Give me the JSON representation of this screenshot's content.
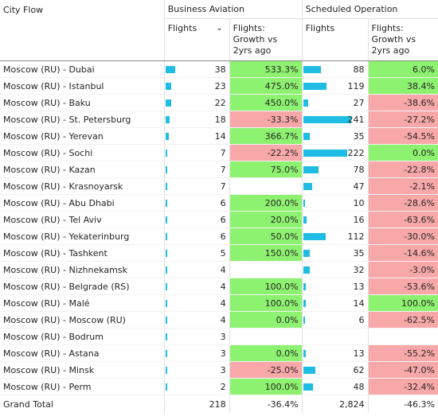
{
  "header": {
    "city_flow": "City Flow",
    "group1": "Business Aviation",
    "group2": "Scheduled Operation",
    "flights": "Flights",
    "growth": "Flights: Growth vs 2yrs ago",
    "sort_icon": "chevron-down-icon"
  },
  "rows": [
    {
      "city": "Moscow (RU) - Dubai",
      "ba_flights": "38",
      "ba_growth": "533.3%",
      "so_flights": "88",
      "so_growth": "6.0%"
    },
    {
      "city": "Moscow (RU) - Istanbul",
      "ba_flights": "23",
      "ba_growth": "475.0%",
      "so_flights": "119",
      "so_growth": "38.4%"
    },
    {
      "city": "Moscow (RU) - Baku",
      "ba_flights": "22",
      "ba_growth": "450.0%",
      "so_flights": "27",
      "so_growth": "-38.6%"
    },
    {
      "city": "Moscow (RU) - St. Petersburg",
      "ba_flights": "18",
      "ba_growth": "-33.3%",
      "so_flights": "241",
      "so_growth": "-27.2%"
    },
    {
      "city": "Moscow (RU) - Yerevan",
      "ba_flights": "14",
      "ba_growth": "366.7%",
      "so_flights": "35",
      "so_growth": "-54.5%"
    },
    {
      "city": "Moscow (RU) - Sochi",
      "ba_flights": "7",
      "ba_growth": "-22.2%",
      "so_flights": "222",
      "so_growth": "0.0%"
    },
    {
      "city": "Moscow (RU) - Kazan",
      "ba_flights": "7",
      "ba_growth": "75.0%",
      "so_flights": "78",
      "so_growth": "-22.8%"
    },
    {
      "city": "Moscow (RU) - Krasnoyarsk",
      "ba_flights": "7",
      "ba_growth": "",
      "so_flights": "47",
      "so_growth": "-2.1%"
    },
    {
      "city": "Moscow (RU) - Abu Dhabi",
      "ba_flights": "6",
      "ba_growth": "200.0%",
      "so_flights": "10",
      "so_growth": "-28.6%"
    },
    {
      "city": "Moscow (RU) - Tel Aviv",
      "ba_flights": "6",
      "ba_growth": "20.0%",
      "so_flights": "16",
      "so_growth": "-63.6%"
    },
    {
      "city": "Moscow (RU) - Yekaterinburg",
      "ba_flights": "6",
      "ba_growth": "50.0%",
      "so_flights": "112",
      "so_growth": "-30.0%"
    },
    {
      "city": "Moscow (RU) - Tashkent",
      "ba_flights": "5",
      "ba_growth": "150.0%",
      "so_flights": "35",
      "so_growth": "-14.6%"
    },
    {
      "city": "Moscow (RU) - Nizhnekamsk",
      "ba_flights": "4",
      "ba_growth": "",
      "so_flights": "32",
      "so_growth": "-3.0%"
    },
    {
      "city": "Moscow (RU) - Belgrade (RS)",
      "ba_flights": "4",
      "ba_growth": "100.0%",
      "so_flights": "13",
      "so_growth": "-53.6%"
    },
    {
      "city": "Moscow (RU) - Malé",
      "ba_flights": "4",
      "ba_growth": "100.0%",
      "so_flights": "14",
      "so_growth": "100.0%"
    },
    {
      "city": "Moscow (RU) - Moscow (RU)",
      "ba_flights": "4",
      "ba_growth": "0.0%",
      "so_flights": "6",
      "so_growth": "-62.5%"
    },
    {
      "city": "Moscow (RU) - Bodrum",
      "ba_flights": "3",
      "ba_growth": "",
      "so_flights": "",
      "so_growth": ""
    },
    {
      "city": "Moscow (RU) - Astana",
      "ba_flights": "3",
      "ba_growth": "0.0%",
      "so_flights": "13",
      "so_growth": "-55.2%"
    },
    {
      "city": "Moscow (RU) - Minsk",
      "ba_flights": "3",
      "ba_growth": "-25.0%",
      "so_flights": "62",
      "so_growth": "-47.0%"
    },
    {
      "city": "Moscow (RU) - Perm",
      "ba_flights": "2",
      "ba_growth": "100.0%",
      "so_flights": "48",
      "so_growth": "-32.4%"
    }
  ],
  "total": {
    "label": "Grand Total",
    "ba_flights": "218",
    "ba_growth": "-36.4%",
    "so_flights": "2,824",
    "so_growth": "-46.3%"
  },
  "colors": {
    "bar": "#1fbde3",
    "positive": "#8ef271",
    "negative": "#f8a8a8"
  }
}
